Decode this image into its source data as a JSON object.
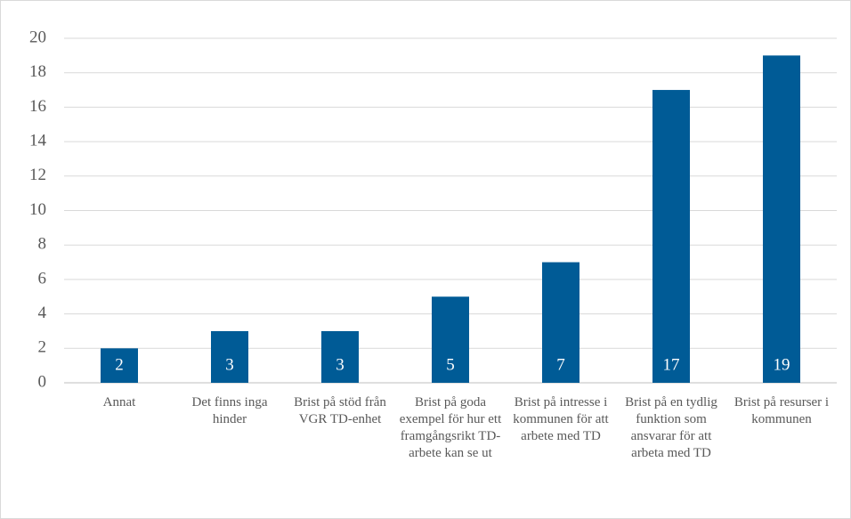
{
  "chart_data": {
    "type": "bar",
    "categories": [
      "Annat",
      "Det finns inga hinder",
      "Brist på stöd från VGR TD-enhet",
      "Brist på goda exempel för hur ett framgångsrikt TD-arbete kan se ut",
      "Brist på intresse i kommunen för att arbete med TD",
      "Brist på en tydlig funktion som ansvarar för att arbeta med TD",
      "Brist på resurser i kommunen"
    ],
    "values": [
      2,
      3,
      3,
      5,
      7,
      17,
      19
    ],
    "color": "#005b96",
    "ylim": [
      0,
      20
    ],
    "yticks": [
      0,
      2,
      4,
      6,
      8,
      10,
      12,
      14,
      16,
      18,
      20
    ],
    "grid": true
  }
}
